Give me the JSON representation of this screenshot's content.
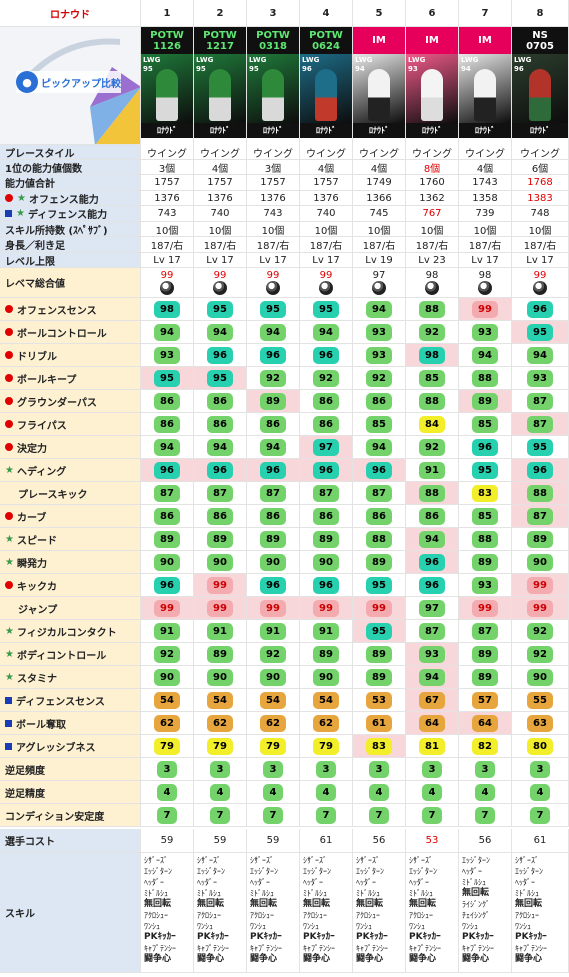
{
  "title": "ロナウド",
  "pickup_label": "ピックアップ比較",
  "cols": [
    "1",
    "2",
    "3",
    "4",
    "5",
    "6",
    "7",
    "8"
  ],
  "cards": [
    {
      "type": "POTW",
      "date": "1126",
      "rating": "95",
      "name": "ﾛﾅｳﾄﾞ"
    },
    {
      "type": "POTW",
      "date": "1217",
      "rating": "95",
      "name": "ﾛﾅｳﾄﾞ"
    },
    {
      "type": "POTW",
      "date": "0318",
      "rating": "95",
      "name": "ﾛﾅｳﾄﾞ"
    },
    {
      "type": "POTW",
      "date": "0624",
      "rating": "96",
      "name": "ﾛﾅｳﾄﾞ"
    },
    {
      "type": "IM",
      "date": "",
      "rating": "94",
      "name": "ﾛﾅｳﾄﾞ"
    },
    {
      "type": "IM",
      "date": "",
      "rating": "93",
      "name": "ﾛﾅｳﾄﾞ"
    },
    {
      "type": "IM",
      "date": "",
      "rating": "94",
      "name": "ﾛﾅｳﾄﾞ"
    },
    {
      "type": "NS",
      "date": "0705",
      "rating": "96",
      "name": "ﾛﾅｳﾄﾞ"
    }
  ],
  "basic_rows": [
    {
      "label": "プレースタイル",
      "values": [
        "ウイング",
        "ウイング",
        "ウイング",
        "ウイング",
        "ウイング",
        "ウイング",
        "ウイング",
        "ウイング"
      ]
    },
    {
      "label": "1位の能力値個数",
      "values": [
        "3個",
        "4個",
        "3個",
        "4個",
        "4個",
        "8個",
        "4個",
        "6個"
      ],
      "red": [
        5
      ]
    },
    {
      "label": "能力値合計",
      "values": [
        "1757",
        "1757",
        "1757",
        "1757",
        "1749",
        "1760",
        "1743",
        "1768"
      ],
      "red": [
        7
      ]
    },
    {
      "label": "オフェンス能力",
      "icon": "dot-star",
      "values": [
        "1376",
        "1376",
        "1376",
        "1376",
        "1366",
        "1362",
        "1358",
        "1383"
      ],
      "red": [
        7
      ]
    },
    {
      "label": "ディフェンス能力",
      "icon": "sq-star",
      "values": [
        "743",
        "740",
        "743",
        "740",
        "745",
        "767",
        "739",
        "748"
      ],
      "red": [
        5
      ]
    },
    {
      "label": "スキル所持数 (ｽﾍﾟｻﾌﾞ)",
      "values": [
        "10個",
        "10個",
        "10個",
        "10個",
        "10個",
        "10個",
        "10個",
        "10個"
      ]
    },
    {
      "label": "身長／利き足",
      "values": [
        "187/右",
        "187/右",
        "187/右",
        "187/右",
        "187/右",
        "187/右",
        "187/右",
        "187/右"
      ]
    },
    {
      "label": "レベル上限",
      "values": [
        "Lv 17",
        "Lv 17",
        "Lv 17",
        "Lv 17",
        "Lv 19",
        "Lv 23",
        "Lv 17",
        "Lv 17"
      ]
    }
  ],
  "remake": {
    "label": "レベマ総合値",
    "values": [
      "99",
      "99",
      "99",
      "99",
      "97",
      "98",
      "98",
      "99"
    ],
    "red": [
      0,
      1,
      2,
      3,
      7
    ]
  },
  "stat_rows": [
    {
      "label": "オフェンスセンス",
      "icon": "dot",
      "values": [
        98,
        95,
        95,
        95,
        94,
        88,
        99,
        96
      ],
      "colors": [
        "t",
        "t",
        "t",
        "t",
        "g",
        "g",
        "r",
        "t"
      ],
      "pink": [
        6
      ]
    },
    {
      "label": "ボールコントロール",
      "icon": "dot",
      "values": [
        94,
        94,
        94,
        94,
        93,
        92,
        93,
        95
      ],
      "colors": [
        "g",
        "g",
        "g",
        "g",
        "g",
        "g",
        "g",
        "t"
      ],
      "pink": [
        7
      ]
    },
    {
      "label": "ドリブル",
      "icon": "dot",
      "values": [
        93,
        96,
        96,
        96,
        93,
        98,
        94,
        94
      ],
      "colors": [
        "g",
        "t",
        "t",
        "t",
        "g",
        "t",
        "g",
        "g"
      ],
      "pink": [
        5
      ]
    },
    {
      "label": "ボールキープ",
      "icon": "dot",
      "values": [
        95,
        95,
        92,
        92,
        92,
        85,
        88,
        93
      ],
      "colors": [
        "t",
        "t",
        "g",
        "g",
        "g",
        "g",
        "g",
        "g"
      ],
      "pink": [
        0,
        1
      ]
    },
    {
      "label": "グラウンダーパス",
      "icon": "dot",
      "values": [
        86,
        86,
        89,
        86,
        86,
        88,
        89,
        87
      ],
      "colors": [
        "g",
        "g",
        "g",
        "g",
        "g",
        "g",
        "g",
        "g"
      ],
      "pink": [
        2,
        6
      ]
    },
    {
      "label": "フライパス",
      "icon": "dot",
      "values": [
        86,
        86,
        86,
        86,
        85,
        84,
        85,
        87
      ],
      "colors": [
        "g",
        "g",
        "g",
        "g",
        "g",
        "y",
        "g",
        "g"
      ],
      "pink": [
        7
      ]
    },
    {
      "label": "決定力",
      "icon": "dot",
      "values": [
        94,
        94,
        94,
        97,
        94,
        92,
        96,
        95
      ],
      "colors": [
        "g",
        "g",
        "g",
        "t",
        "g",
        "g",
        "t",
        "t"
      ],
      "pink": [
        3
      ]
    },
    {
      "label": "ヘディング",
      "icon": "star",
      "values": [
        96,
        96,
        96,
        96,
        96,
        91,
        95,
        96
      ],
      "colors": [
        "t",
        "t",
        "t",
        "t",
        "t",
        "g",
        "t",
        "t"
      ],
      "pink": [
        0,
        1,
        2,
        3,
        4,
        7
      ]
    },
    {
      "label": "プレースキック",
      "icon": "none",
      "values": [
        87,
        87,
        87,
        87,
        87,
        88,
        83,
        88
      ],
      "colors": [
        "g",
        "g",
        "g",
        "g",
        "g",
        "g",
        "y",
        "g"
      ],
      "pink": [
        5,
        7
      ]
    },
    {
      "label": "カーブ",
      "icon": "dot",
      "values": [
        86,
        86,
        86,
        86,
        86,
        86,
        85,
        87
      ],
      "colors": [
        "g",
        "g",
        "g",
        "g",
        "g",
        "g",
        "g",
        "g"
      ],
      "pink": [
        7
      ]
    },
    {
      "label": "スピード",
      "icon": "star",
      "values": [
        89,
        89,
        89,
        89,
        88,
        94,
        88,
        89
      ],
      "colors": [
        "g",
        "g",
        "g",
        "g",
        "g",
        "g",
        "g",
        "g"
      ],
      "pink": [
        5
      ]
    },
    {
      "label": "瞬発力",
      "icon": "star",
      "values": [
        90,
        90,
        90,
        90,
        89,
        96,
        89,
        90
      ],
      "colors": [
        "g",
        "g",
        "g",
        "g",
        "g",
        "t",
        "g",
        "g"
      ],
      "pink": [
        5
      ]
    },
    {
      "label": "キックカ",
      "icon": "dot",
      "values": [
        96,
        99,
        96,
        96,
        95,
        96,
        93,
        99
      ],
      "colors": [
        "t",
        "r",
        "t",
        "t",
        "t",
        "t",
        "g",
        "r"
      ],
      "pink": [
        1,
        7
      ]
    },
    {
      "label": "ジャンプ",
      "icon": "none",
      "values": [
        99,
        99,
        99,
        99,
        99,
        97,
        99,
        99
      ],
      "colors": [
        "r",
        "r",
        "r",
        "r",
        "r",
        "g",
        "r",
        "r"
      ],
      "pink": [
        0,
        1,
        2,
        3,
        4,
        6,
        7
      ]
    },
    {
      "label": "フィジカルコンタクト",
      "icon": "star",
      "values": [
        91,
        91,
        91,
        91,
        95,
        87,
        87,
        92
      ],
      "colors": [
        "g",
        "g",
        "g",
        "g",
        "t",
        "g",
        "g",
        "g"
      ],
      "pink": [
        4
      ]
    },
    {
      "label": "ボディコントロール",
      "icon": "star",
      "values": [
        92,
        89,
        92,
        89,
        89,
        93,
        89,
        92
      ],
      "colors": [
        "g",
        "g",
        "g",
        "g",
        "g",
        "g",
        "g",
        "g"
      ],
      "pink": [
        5
      ]
    },
    {
      "label": "スタミナ",
      "icon": "star",
      "values": [
        90,
        90,
        90,
        90,
        89,
        94,
        89,
        90
      ],
      "colors": [
        "g",
        "g",
        "g",
        "g",
        "g",
        "g",
        "g",
        "g"
      ],
      "pink": [
        5
      ]
    },
    {
      "label": "ディフェンスセンス",
      "icon": "sq",
      "values": [
        54,
        54,
        54,
        54,
        53,
        67,
        57,
        55
      ],
      "colors": [
        "o",
        "o",
        "o",
        "o",
        "o",
        "o",
        "o",
        "o"
      ],
      "pink": [
        5
      ]
    },
    {
      "label": "ボール奪取",
      "icon": "sq",
      "values": [
        62,
        62,
        62,
        62,
        61,
        64,
        64,
        63
      ],
      "colors": [
        "o",
        "o",
        "o",
        "o",
        "o",
        "o",
        "o",
        "o"
      ],
      "pink": [
        5,
        6
      ]
    },
    {
      "label": "アグレッシブネス",
      "icon": "sq",
      "values": [
        79,
        79,
        79,
        79,
        83,
        81,
        82,
        80
      ],
      "colors": [
        "y",
        "y",
        "y",
        "y",
        "y",
        "y",
        "y",
        "y"
      ],
      "pink": [
        4
      ]
    }
  ],
  "small_rows": [
    {
      "label": "逆足頻度",
      "values": [
        3,
        3,
        3,
        3,
        3,
        3,
        3,
        3
      ]
    },
    {
      "label": "逆足精度",
      "values": [
        4,
        4,
        4,
        4,
        4,
        4,
        4,
        4
      ]
    },
    {
      "label": "コンディション安定度",
      "values": [
        7,
        7,
        7,
        7,
        7,
        7,
        7,
        7
      ]
    }
  ],
  "cost": {
    "label": "選手コスト",
    "values": [
      "59",
      "59",
      "59",
      "61",
      "56",
      "53",
      "56",
      "61"
    ],
    "red": [
      5
    ]
  },
  "skills": {
    "label": "スキル",
    "lists": [
      [
        "ｼｻﾞｰｽﾞ",
        "ｴｯｼﾞﾀｰﾝ",
        "ﾍｯﾀﾞｰ",
        "ﾐﾄﾞﾙｼｭ",
        "無回転",
        "ｱｸﾛｼｭｰ",
        "ﾜﾝｼｭ",
        "PKｷｯｶｰ",
        "ｷｬﾌﾟﾃﾝｼｰ",
        "闘争心"
      ],
      [
        "ｼｻﾞｰｽﾞ",
        "ｴｯｼﾞﾀｰﾝ",
        "ﾍｯﾀﾞｰ",
        "ﾐﾄﾞﾙｼｭ",
        "無回転",
        "ｱｸﾛｼｭｰ",
        "ﾜﾝｼｭ",
        "PKｷｯｶｰ",
        "ｷｬﾌﾟﾃﾝｼｰ",
        "闘争心"
      ],
      [
        "ｼｻﾞｰｽﾞ",
        "ｴｯｼﾞﾀｰﾝ",
        "ﾍｯﾀﾞｰ",
        "ﾐﾄﾞﾙｼｭ",
        "無回転",
        "ｱｸﾛｼｭｰ",
        "ﾜﾝｼｭ",
        "PKｷｯｶｰ",
        "ｷｬﾌﾟﾃﾝｼｰ",
        "闘争心"
      ],
      [
        "ｼｻﾞｰｽﾞ",
        "ｴｯｼﾞﾀｰﾝ",
        "ﾍｯﾀﾞｰ",
        "ﾐﾄﾞﾙｼｭ",
        "無回転",
        "ｱｸﾛｼｭｰ",
        "ﾜﾝｼｭ",
        "PKｷｯｶｰ",
        "ｷｬﾌﾟﾃﾝｼｰ",
        "闘争心"
      ],
      [
        "ｼｻﾞｰｽﾞ",
        "ｴｯｼﾞﾀｰﾝ",
        "ﾍｯﾀﾞｰ",
        "ﾐﾄﾞﾙｼｭ",
        "無回転",
        "ｱｸﾛｼｭｰ",
        "ﾜﾝｼｭ",
        "PKｷｯｶｰ",
        "ｷｬﾌﾟﾃﾝｼｰ",
        "闘争心"
      ],
      [
        "ｼｻﾞｰｽﾞ",
        "ｴｯｼﾞﾀｰﾝ",
        "ﾍｯﾀﾞｰ",
        "ﾐﾄﾞﾙｼｭ",
        "無回転",
        "ｱｸﾛｼｭｰ",
        "ﾜﾝｼｭ",
        "PKｷｯｶｰ",
        "ｷｬﾌﾟﾃﾝｼｰ",
        "闘争心"
      ],
      [
        "ｴｯｼﾞﾀｰﾝ",
        "ﾍｯﾀﾞｰ",
        "ﾐﾄﾞﾙｼｭ",
        "無回転",
        "ﾗｲｼﾞﾝｸﾞ",
        "ﾁｪｲｼﾝｸﾞ",
        "ﾜﾝｼｭ",
        "PKｷｯｶｰ",
        "ｷｬﾌﾟﾃﾝｼｰ",
        "闘争心"
      ],
      [
        "ｼｻﾞｰｽﾞ",
        "ｴｯｼﾞﾀｰﾝ",
        "ﾍｯﾀﾞｰ",
        "ﾐﾄﾞﾙｼｭ",
        "無回転",
        "ｱｸﾛｼｭｰ",
        "ﾜﾝｼｭ",
        "PKｷｯｶｰ",
        "ｷｬﾌﾟﾃﾝｼｰ",
        "闘争心"
      ]
    ]
  },
  "colors": {
    "teal": "#27d0ae",
    "green": "#73d36a",
    "yellow": "#f3ee2a",
    "orange": "#e7a53d",
    "red_badge": "#f3abb0",
    "label_blue": "#dde6f3",
    "label_yellow": "#fdf1d2",
    "im_pink": "#e6005c"
  }
}
